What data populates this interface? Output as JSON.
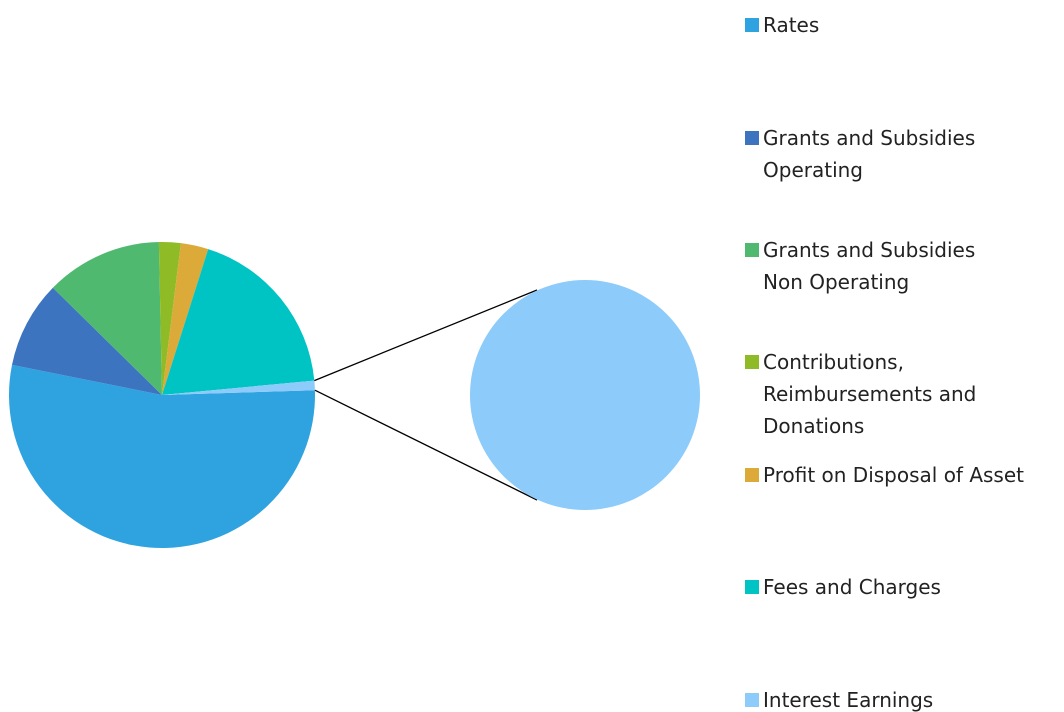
{
  "chart_data": {
    "type": "pie-of-pie",
    "categories": [
      "Rates",
      "Grants and Subsidies Operating",
      "Grants and Subsidies Non Operating",
      "Contributions, Reimbursements and Donations",
      "Profit on Disposal of Asset",
      "Fees and Charges",
      "Interest Earnings"
    ],
    "values": [
      53.6,
      9.2,
      12.3,
      2.3,
      2.9,
      18.6,
      1.0
    ],
    "colors": [
      "#2ea3e0",
      "#3d74c0",
      "#4fba6f",
      "#8fbc26",
      "#dcaa38",
      "#00c4c4",
      "#8ccbfa"
    ],
    "secondary": [
      6
    ],
    "legend": "right"
  }
}
